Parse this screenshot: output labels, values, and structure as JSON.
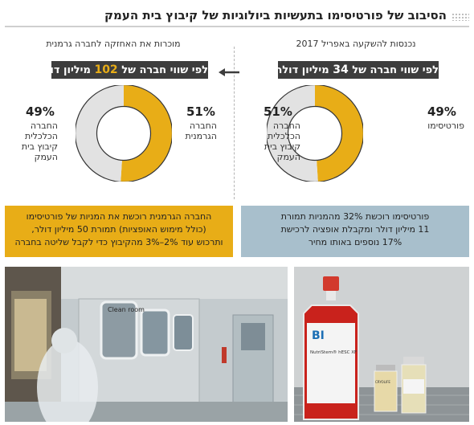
{
  "header": {
    "title": "הסיבוב של פורטיסימו בתעשיות ביולוגיות של קיבוץ בית העמק"
  },
  "colors": {
    "fortissimo": "#e8ad17",
    "kibbutz": "#e2e2e2",
    "bar": "#3d3d3d",
    "note_right": "#a8bfcc",
    "note_left": "#e8ad17"
  },
  "chart_data": [
    {
      "type": "pie",
      "subtitle": "נכנסות להשקעה באפריל 2017",
      "value_line": {
        "before": "לפי שווי חברה של",
        "number": "34",
        "after": "מיליון דולר"
      },
      "slices": [
        {
          "label": "פורטיסימו",
          "value": 49,
          "pct_text": "49%",
          "color": "#e8ad17"
        },
        {
          "label": "החברה הכלכלית קיבוץ בית העמק",
          "value": 51,
          "pct_text": "51%",
          "color": "#e2e2e2"
        }
      ]
    },
    {
      "type": "pie",
      "subtitle": "מוכרות את האחזקה לחברה גרמנית",
      "value_line": {
        "before": "לפי שווי חברה של",
        "number": "102",
        "after": "מיליון דולר"
      },
      "slices": [
        {
          "label": "החברה הגרמנית",
          "value": 51,
          "pct_text": "51%",
          "color": "#e8ad17"
        },
        {
          "label": "החברה הכלכלית קיבוץ בית העמק",
          "value": 49,
          "pct_text": "49%",
          "color": "#e2e2e2"
        }
      ]
    }
  ],
  "notes": {
    "right": [
      "פורטיסימו רוכשת 32% מהמניות תמורת",
      "11 מיליון דולר ומקבלת אופציה לרכישת",
      "17% נוספים באותו מחיר"
    ],
    "left": [
      "החברה הגרמנית רוכשת את המניות של פורטיסימו",
      "(כולל מימוש האופציות) תמורת 50 מיליון דולר,",
      "ותרכוש עוד 2%–3% מהקיבוץ כדי לקבל שליטה בחברה"
    ]
  },
  "photos": {
    "lab_sign": "Clean room",
    "flask_brand": "BI",
    "flask_label": "NutriStem® hESC XF",
    "vial_label": "CRYOLIFE"
  }
}
